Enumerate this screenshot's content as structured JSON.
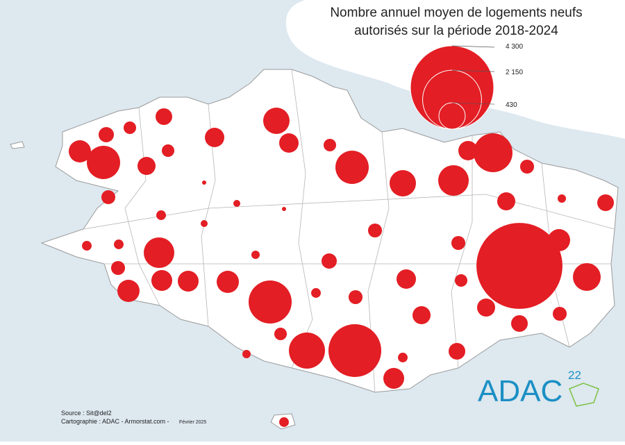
{
  "map": {
    "title_lines": [
      "Nombre annuel moyen de logements neufs",
      "autorisés sur la période 2018-2024"
    ],
    "legend": [
      {
        "value": 4300,
        "label": "4 300"
      },
      {
        "value": 2150,
        "label": "2 150"
      },
      430
    ],
    "circles": [
      145,
      97,
      172,
      234,
      431,
      234,
      306,
      688,
      202,
      97,
      97,
      688,
      431,
      578,
      234,
      936,
      120,
      202,
      43,
      172,
      120,
      11,
      30,
      11,
      58,
      30,
      120,
      58,
      58,
      578,
      43,
      145,
      120,
      306,
      4580,
      120,
      269,
      269,
      306,
      234,
      97,
      478,
      306,
      1148,
      58,
      120,
      202,
      202,
      120,
      172,
      97,
      807,
      1725,
      43,
      172,
      58,
      269,
      58
    ],
    "source": "Source : Sit@del2",
    "credits": "Cartographie : ADAC - Armorstat.com -",
    "date": "Février 2025",
    "logo": "ADAC",
    "logo_number": "22"
  }
}
